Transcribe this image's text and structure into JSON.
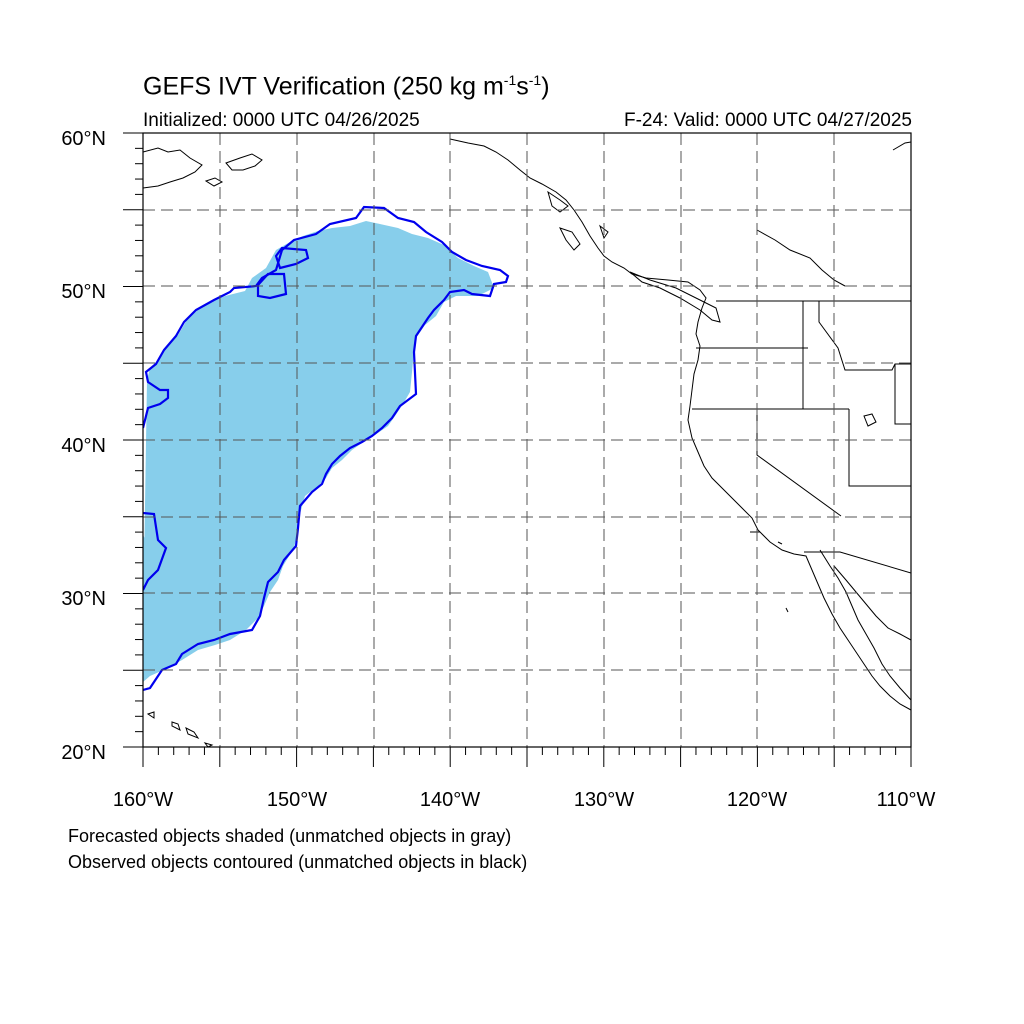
{
  "header": {
    "title_main": "GEFS IVT Verification (250 kg m",
    "title_exp1": "-1",
    "title_mid": "s",
    "title_exp2": "-1",
    "title_end": ")",
    "initialized": "Initialized: 0000 UTC 04/26/2025",
    "valid": "F-24: Valid: 0000 UTC 04/27/2025"
  },
  "map": {
    "lon_range": [
      -160,
      -110
    ],
    "lat_range": [
      20,
      60
    ],
    "lat_labels": [
      "20°N",
      "30°N",
      "40°N",
      "50°N",
      "60°N"
    ],
    "lon_labels": [
      "160°W",
      "150°W",
      "140°W",
      "130°W",
      "120°W",
      "110°W"
    ],
    "colors": {
      "forecast_fill": "#87ceeb",
      "observed_contour": "#0000ee",
      "coastline": "#000000",
      "grid": "#555555"
    }
  },
  "legend": {
    "line1": "Forecasted objects shaded (unmatched objects in gray)",
    "line2": "Observed objects contoured (unmatched objects in black)"
  }
}
